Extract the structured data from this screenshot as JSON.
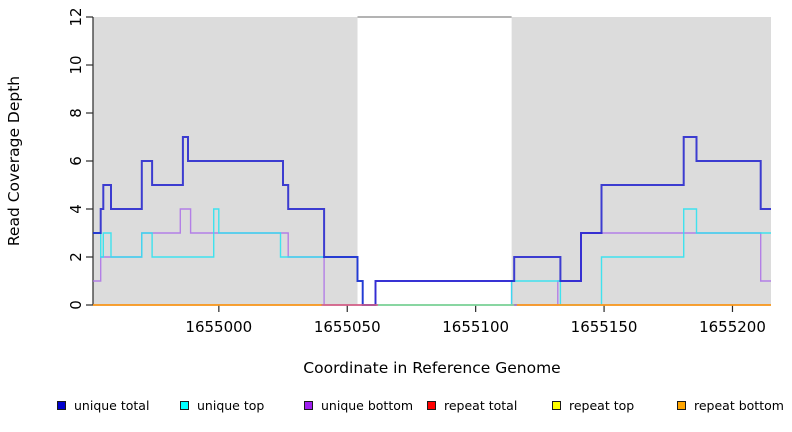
{
  "chart_data": {
    "type": "step-line",
    "title": "",
    "xlabel": "Coordinate in Reference Genome",
    "ylabel": "Read Coverage Depth",
    "xlim": [
      1654951,
      1655215
    ],
    "ylim": [
      0,
      12
    ],
    "xticks": [
      1655000,
      1655050,
      1655100,
      1655150,
      1655200
    ],
    "yticks": [
      0,
      2,
      4,
      6,
      8,
      10,
      12
    ],
    "plot_background": "#ffffff",
    "shaded_region_color": "#dcdcdc",
    "shaded_regions": [
      {
        "x0": 1654951,
        "x1": 1655054
      },
      {
        "x0": 1655114,
        "x1": 1655215
      }
    ],
    "gap_top_line": {
      "x0": 1655054,
      "x1": 1655114,
      "y": 12,
      "color": "#9a9a9a"
    },
    "axis_color": "#2a2a2a",
    "series": [
      {
        "name": "unique bottom",
        "color": "#ab6fe8",
        "opacity": 0.85,
        "width": 1.4,
        "segments": [
          [
            [
              1654951,
              1
            ],
            [
              1654954,
              2
            ],
            [
              1654970,
              3
            ],
            [
              1654985,
              4
            ],
            [
              1654989,
              3
            ],
            [
              1655027,
              2
            ],
            [
              1655041,
              0
            ],
            [
              1655061,
              1
            ],
            [
              1655114,
              0
            ],
            [
              1655132,
              1
            ],
            [
              1655141,
              3
            ],
            [
              1655211,
              1
            ],
            [
              1655215,
              1
            ]
          ]
        ]
      },
      {
        "name": "unique top",
        "color": "#2ee2f0",
        "opacity": 0.9,
        "width": 1.4,
        "segments": [
          [
            [
              1654951,
              3
            ],
            [
              1654954,
              2
            ],
            [
              1654955,
              3
            ],
            [
              1654958,
              2
            ],
            [
              1654970,
              3
            ],
            [
              1654974,
              2
            ],
            [
              1654998,
              4
            ],
            [
              1655000,
              3
            ],
            [
              1655024,
              2
            ],
            [
              1655054,
              1
            ],
            [
              1655056,
              0
            ],
            [
              1655114,
              1
            ],
            [
              1655133,
              0
            ],
            [
              1655149,
              2
            ],
            [
              1655181,
              4
            ],
            [
              1655186,
              3
            ],
            [
              1655215,
              3
            ]
          ]
        ]
      },
      {
        "name": "unique total",
        "color": "#1919cd",
        "opacity": 0.82,
        "width": 2,
        "segments": [
          [
            [
              1654951,
              3
            ],
            [
              1654954,
              4
            ],
            [
              1654955,
              5
            ],
            [
              1654958,
              4
            ],
            [
              1654970,
              6
            ],
            [
              1654974,
              5
            ],
            [
              1654986,
              7
            ],
            [
              1654988,
              6
            ],
            [
              1655025,
              5
            ],
            [
              1655027,
              4
            ],
            [
              1655041,
              2
            ],
            [
              1655054,
              1
            ],
            [
              1655056,
              0
            ],
            [
              1655061,
              1
            ],
            [
              1655115,
              2
            ],
            [
              1655133,
              1
            ],
            [
              1655141,
              3
            ],
            [
              1655149,
              5
            ],
            [
              1655181,
              7
            ],
            [
              1655186,
              6
            ],
            [
              1655211,
              4
            ],
            [
              1655215,
              4
            ]
          ]
        ]
      },
      {
        "name": "repeat total",
        "color": "#e0607f",
        "opacity": 1,
        "width": 1.4,
        "segments": [
          [
            [
              1655040,
              0
            ],
            [
              1655062,
              0
            ]
          ]
        ]
      },
      {
        "name": "repeat top",
        "color": "#8bd690",
        "opacity": 1,
        "width": 1.4,
        "segments": [
          [
            [
              1655062,
              0
            ],
            [
              1655115,
              0
            ]
          ]
        ]
      },
      {
        "name": "repeat bottom",
        "color": "#ff9b1e",
        "opacity": 1,
        "width": 1.8,
        "segments": [
          [
            [
              1654951,
              0
            ],
            [
              1655040,
              0
            ]
          ],
          [
            [
              1655116,
              0
            ],
            [
              1655215,
              0
            ]
          ]
        ]
      }
    ],
    "legend": {
      "items": [
        {
          "label": "unique total",
          "color": "#0000cd"
        },
        {
          "label": "unique top",
          "color": "#00ffff"
        },
        {
          "label": "unique bottom",
          "color": "#a020f0"
        },
        {
          "label": "repeat total",
          "color": "#ff0000"
        },
        {
          "label": "repeat top",
          "color": "#ffff00"
        },
        {
          "label": "repeat bottom",
          "color": "#ffa500"
        }
      ]
    }
  }
}
